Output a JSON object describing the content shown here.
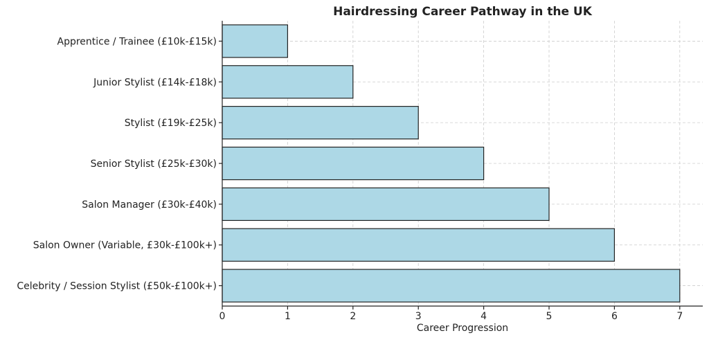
{
  "chart_data": {
    "type": "bar",
    "orientation": "horizontal",
    "title": "Hairdressing Career Pathway in the UK",
    "xlabel": "Career Progression",
    "ylabel": "",
    "xlim": [
      0,
      7.35
    ],
    "xticks": [
      0,
      1,
      2,
      3,
      4,
      5,
      6,
      7
    ],
    "grid": true,
    "bar_color": "#add8e6",
    "edge_color": "#222222",
    "categories": [
      "Apprentice / Trainee (£10k-£15k)",
      "Junior Stylist (£14k-£18k)",
      "Stylist (£19k-£25k)",
      "Senior Stylist (£25k-£30k)",
      "Salon Manager (£30k-£40k)",
      "Salon Owner (Variable, £30k-£100k+)",
      "Celebrity / Session Stylist (£50k-£100k+)"
    ],
    "values": [
      1,
      2,
      3,
      4,
      5,
      6,
      7
    ]
  }
}
